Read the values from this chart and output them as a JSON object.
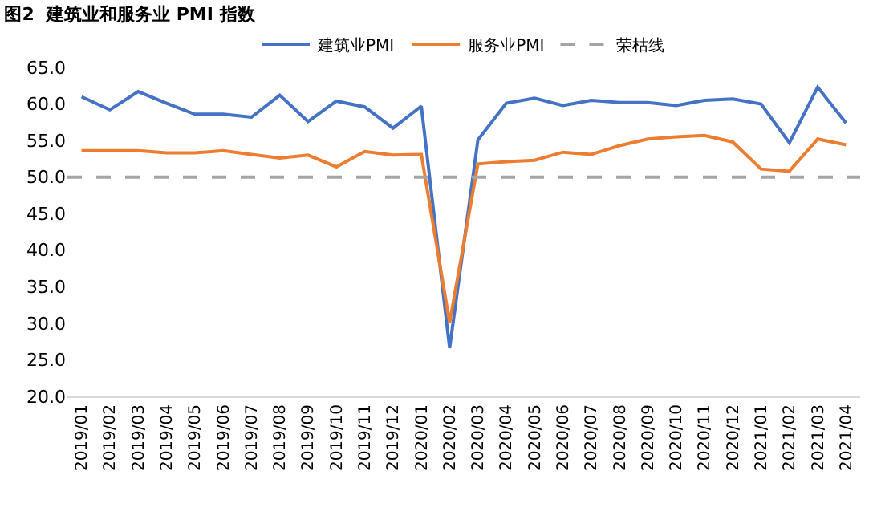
{
  "chart_data": {
    "type": "line",
    "title": "图2  建筑业和服务业 PMI 指数",
    "categories": [
      "2019/01",
      "2019/02",
      "2019/03",
      "2019/04",
      "2019/05",
      "2019/06",
      "2019/07",
      "2019/08",
      "2019/09",
      "2019/10",
      "2019/11",
      "2019/12",
      "2020/01",
      "2020/02",
      "2020/03",
      "2020/04",
      "2020/05",
      "2020/06",
      "2020/07",
      "2020/08",
      "2020/09",
      "2020/10",
      "2020/11",
      "2020/12",
      "2021/01",
      "2021/02",
      "2021/03",
      "2021/04"
    ],
    "series": [
      {
        "name": "建筑业PMI",
        "color": "#4472c4",
        "values": [
          61.0,
          59.2,
          61.7,
          60.1,
          58.6,
          58.6,
          58.2,
          61.2,
          57.6,
          60.4,
          59.6,
          56.7,
          59.7,
          26.6,
          55.1,
          60.1,
          60.8,
          59.8,
          60.5,
          60.2,
          60.2,
          59.8,
          60.5,
          60.7,
          60.0,
          54.7,
          62.3,
          57.4
        ]
      },
      {
        "name": "服务业PMI",
        "color": "#ed7d31",
        "values": [
          53.6,
          53.6,
          53.6,
          53.3,
          53.3,
          53.6,
          53.1,
          52.6,
          53.0,
          51.4,
          53.5,
          53.0,
          53.1,
          30.1,
          51.8,
          52.1,
          52.3,
          53.4,
          53.1,
          54.3,
          55.2,
          55.5,
          55.7,
          54.8,
          51.1,
          50.8,
          55.2,
          54.4
        ]
      }
    ],
    "ref_lines": [
      {
        "axis": "y",
        "value": 50,
        "label": "荣枯线",
        "color": "#a5a5a5",
        "line_style": "dashed"
      }
    ],
    "ylim": [
      20,
      65
    ],
    "yticks": [
      {
        "value": 20,
        "label": "20.0"
      },
      {
        "value": 25,
        "label": "25.0"
      },
      {
        "value": 30,
        "label": "30.0"
      },
      {
        "value": 35,
        "label": "35.0"
      },
      {
        "value": 40,
        "label": "40.0"
      },
      {
        "value": 45,
        "label": "45.0"
      },
      {
        "value": 50,
        "label": "50.0"
      },
      {
        "value": 55,
        "label": "55.0"
      },
      {
        "value": 60,
        "label": "60.0"
      },
      {
        "value": 65,
        "label": "65.0"
      }
    ],
    "grid": false,
    "legend": "top",
    "marker": "none",
    "line_style": "solid"
  }
}
